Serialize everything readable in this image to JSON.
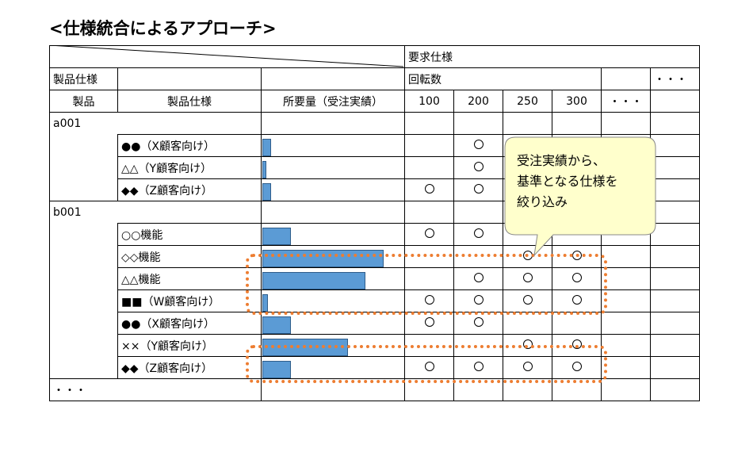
{
  "title": "<仕様統合によるアプローチ>",
  "header": {
    "requirement_spec": "要求仕様",
    "product_spec_group": "製品仕様",
    "rotation": "回転数",
    "ellipsis_top": "・・・",
    "col_product": "製品",
    "col_product_spec": "製品仕様",
    "col_required": "所要量（受注実績）",
    "rpm_values": [
      "100",
      "200",
      "250",
      "300"
    ],
    "ellipsis_cols": "・・・"
  },
  "groups": [
    {
      "product": "a001",
      "rows": [
        {
          "spec": "●●（X顧客向け）",
          "amount_fraction": 0.06,
          "marks": [
            false,
            true,
            false,
            false
          ]
        },
        {
          "spec": "△△（Y顧客向け）",
          "amount_fraction": 0.03,
          "marks": [
            false,
            true,
            false,
            false
          ]
        },
        {
          "spec": "◆◆（Z顧客向け）",
          "amount_fraction": 0.06,
          "marks": [
            true,
            true,
            false,
            false
          ]
        }
      ]
    },
    {
      "product": "b001",
      "rows": [
        {
          "spec": "○○機能",
          "amount_fraction": 0.2,
          "marks": [
            true,
            true,
            false,
            false
          ]
        },
        {
          "spec": "◇◇機能",
          "amount_fraction": 0.85,
          "marks": [
            false,
            false,
            true,
            true
          ]
        },
        {
          "spec": "△△機能",
          "amount_fraction": 0.72,
          "marks": [
            false,
            true,
            true,
            true
          ]
        },
        {
          "spec": "■■（W顧客向け）",
          "amount_fraction": 0.04,
          "marks": [
            true,
            true,
            true,
            true
          ]
        },
        {
          "spec": "●●（X顧客向け）",
          "amount_fraction": 0.2,
          "marks": [
            true,
            true,
            false,
            false
          ]
        },
        {
          "spec": "××（Y顧客向け）",
          "amount_fraction": 0.6,
          "marks": [
            false,
            false,
            true,
            true
          ]
        },
        {
          "spec": "◆◆（Z顧客向け）",
          "amount_fraction": 0.2,
          "marks": [
            true,
            true,
            true,
            true
          ]
        }
      ]
    }
  ],
  "footer_ellipsis": "・・・",
  "callout": {
    "lines": [
      "受注実績から、",
      "基準となる仕様を",
      "絞り込み"
    ]
  },
  "colors": {
    "bar": "#5b9bd5",
    "highlight": "#ed7d31",
    "callout_fill": "#ffffcc"
  }
}
